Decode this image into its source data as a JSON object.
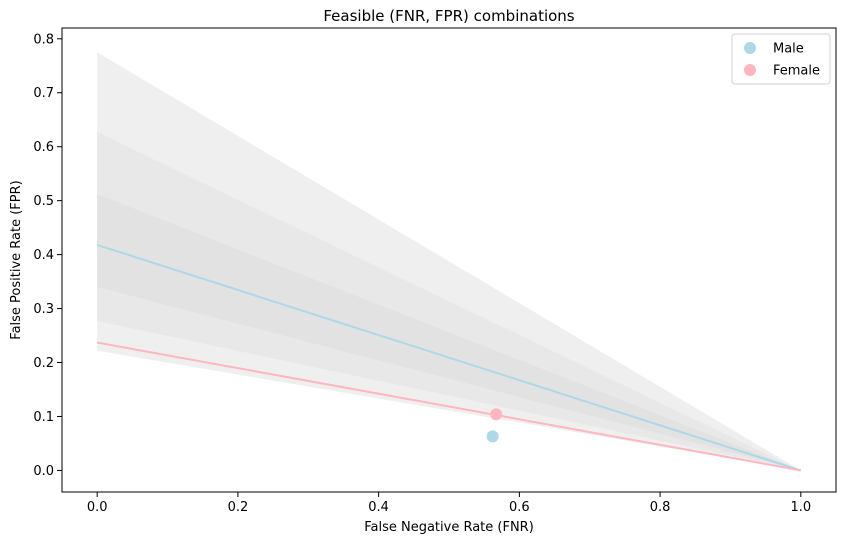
{
  "chart_data": {
    "type": "line",
    "title": "Feasible (FNR, FPR) combinations",
    "xlabel": "False Negative Rate (FNR)",
    "ylabel": "False Positive Rate (FPR)",
    "xlim": [
      -0.05,
      1.05
    ],
    "ylim": [
      -0.04,
      0.82
    ],
    "x_ticks": [
      "0.0",
      "0.2",
      "0.4",
      "0.6",
      "0.8",
      "1.0"
    ],
    "y_ticks": [
      "0.0",
      "0.1",
      "0.2",
      "0.3",
      "0.4",
      "0.5",
      "0.6",
      "0.7",
      "0.8"
    ],
    "grid": false,
    "legend_position": "top-right",
    "bands": [
      {
        "fnr": [
          0,
          1
        ],
        "upper": [
          0.775,
          0
        ],
        "lower": [
          0.222,
          0
        ],
        "color": "#efefef"
      },
      {
        "fnr": [
          0,
          1
        ],
        "upper": [
          0.627,
          0
        ],
        "lower": [
          0.277,
          0
        ],
        "color": "#e8e8e8"
      },
      {
        "fnr": [
          0,
          1
        ],
        "upper": [
          0.512,
          0
        ],
        "lower": [
          0.34,
          0
        ],
        "color": "#e2e2e2"
      }
    ],
    "series": [
      {
        "name": "Male",
        "color": "#add8e6",
        "line": {
          "x": [
            0,
            1
          ],
          "y": [
            0.418,
            0
          ]
        },
        "point": {
          "x": 0.562,
          "y": 0.063
        }
      },
      {
        "name": "Female",
        "color": "#ffb6c1",
        "line": {
          "x": [
            0,
            1
          ],
          "y": [
            0.237,
            0
          ]
        },
        "point": {
          "x": 0.567,
          "y": 0.104
        }
      }
    ]
  }
}
